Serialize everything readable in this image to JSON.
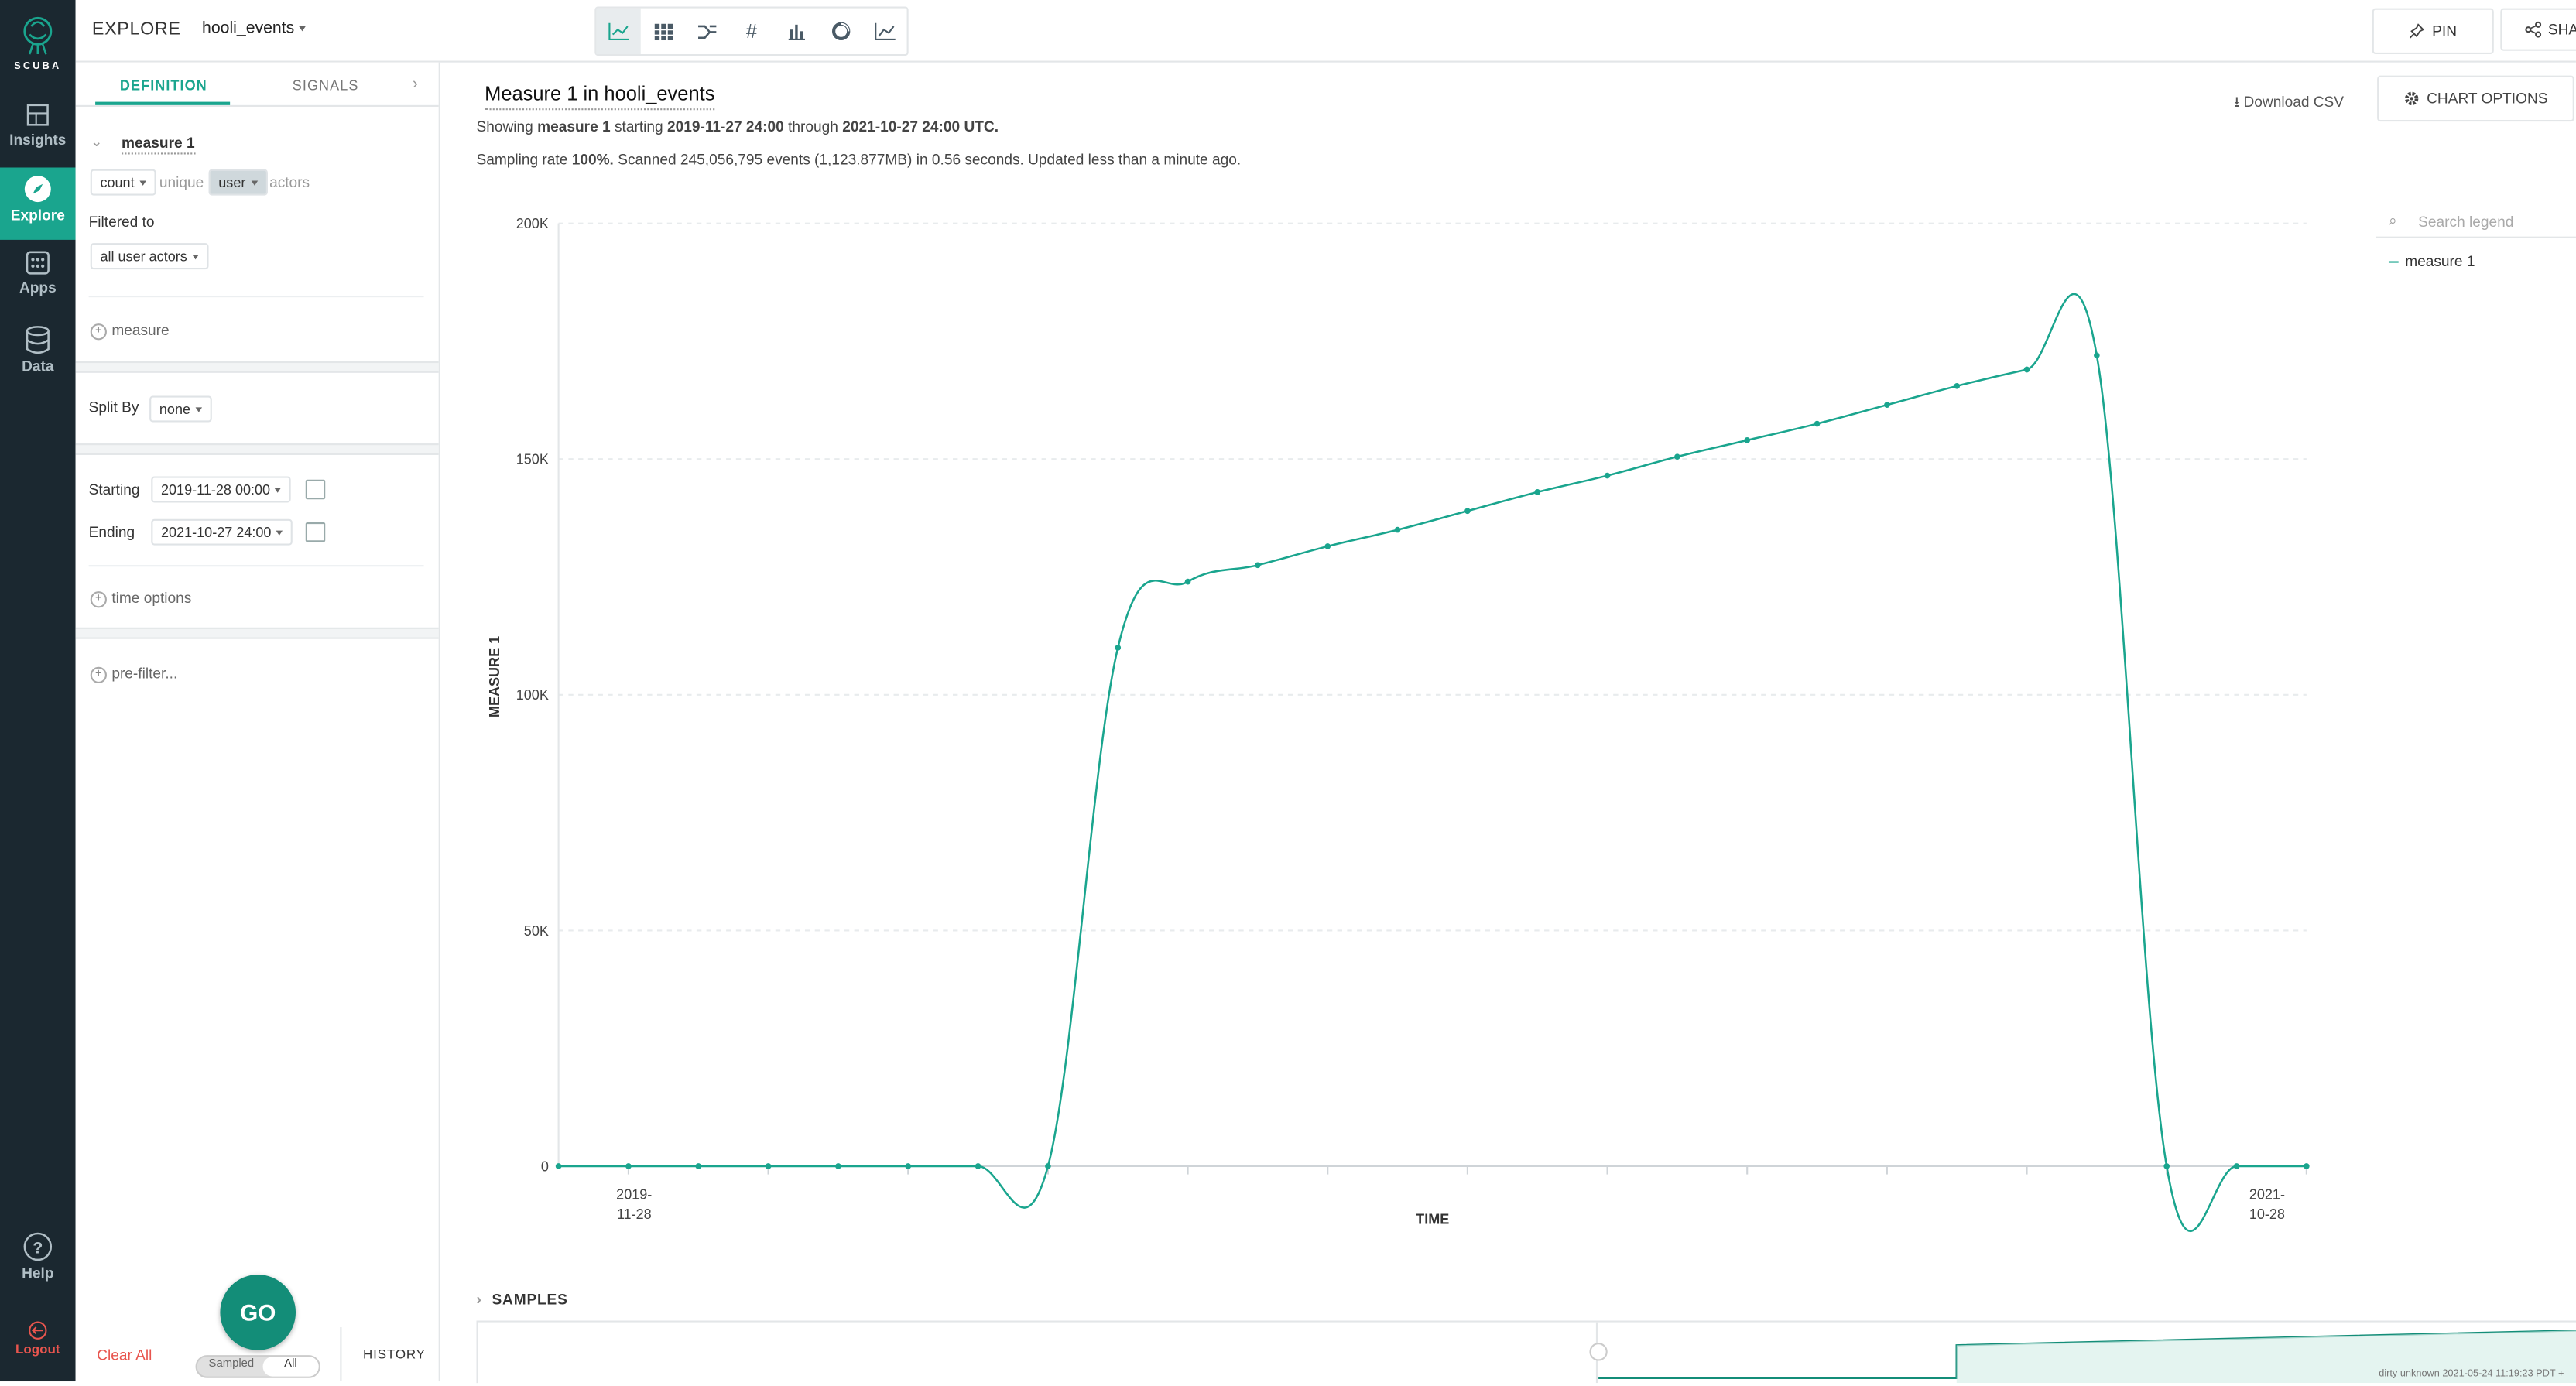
{
  "app": {
    "logo_text": "SCUBA",
    "section": "EXPLORE",
    "dataset": "hooli_events",
    "accent_color": "#1aa58e"
  },
  "nav": {
    "items": [
      {
        "label": "Insights",
        "icon": "insights-icon"
      },
      {
        "label": "Explore",
        "icon": "compass-icon",
        "active": true
      },
      {
        "label": "Apps",
        "icon": "apps-grid-icon"
      },
      {
        "label": "Data",
        "icon": "database-icon"
      }
    ],
    "help": "Help",
    "logout": "Logout"
  },
  "toolbar": {
    "viz_buttons": [
      "line-chart-icon",
      "table-icon",
      "flow-icon",
      "number-icon",
      "bar-chart-icon",
      "donut-icon",
      "area-chart-icon"
    ],
    "pin_label": "PIN",
    "share_label": "SHA"
  },
  "panel": {
    "tabs": [
      "DEFINITION",
      "SIGNALS"
    ],
    "measure_name": "measure 1",
    "aggregate": "count",
    "unique_label": "unique",
    "unique_field": "user",
    "actors_label": "actors",
    "filtered_to_label": "Filtered to",
    "filter_value": "all user actors",
    "add_measure": "measure",
    "split_by_label": "Split By",
    "split_by_value": "none",
    "starting_label": "Starting",
    "starting_value": "2019-11-28 00:00",
    "ending_label": "Ending",
    "ending_value": "2021-10-27 24:00",
    "time_options": "time options",
    "pre_filter": "pre-filter...",
    "clear_all": "Clear All",
    "go": "GO",
    "sampled": "Sampled",
    "all": "All",
    "history": "HISTORY"
  },
  "main": {
    "title": "Measure 1 in hooli_events",
    "info_showing": "Showing",
    "info_measure": "measure 1",
    "info_starting": "starting",
    "info_start": "2019-11-27 24:00",
    "info_through": "through",
    "info_end": "2021-10-27 24:00 UTC.",
    "sampling_prefix": "Sampling rate",
    "sampling_rate": "100%.",
    "sampling_rest": "Scanned 245,056,795 events (1,123.877MB) in 0.56 seconds. Updated less than a minute ago.",
    "download_csv": "Download CSV",
    "chart_options": "CHART OPTIONS",
    "legend_search_placeholder": "Search legend",
    "samples_label": "SAMPLES",
    "footer_note": "dirty unknown 2021-05-24 11:19:23 PDT +"
  },
  "chart_data": {
    "type": "line",
    "xlabel": "TIME",
    "ylabel": "MEASURE 1",
    "ylim": [
      0,
      200000
    ],
    "yticks": [
      "0",
      "50K",
      "100K",
      "150K",
      "200K"
    ],
    "xtick_labels": [
      {
        "line1": "2019-",
        "line2": "11-28"
      },
      {
        "line1": "2021-",
        "line2": "10-28"
      }
    ],
    "grid": true,
    "legend_position": "right",
    "series": [
      {
        "name": "measure 1",
        "color": "#1aa58e",
        "values": [
          0,
          0,
          0,
          0,
          0,
          0,
          0,
          0,
          110000,
          124000,
          127500,
          131500,
          135000,
          139000,
          143000,
          146500,
          150500,
          154000,
          157500,
          161500,
          165500,
          169000,
          172000,
          0,
          0,
          0
        ]
      }
    ]
  }
}
